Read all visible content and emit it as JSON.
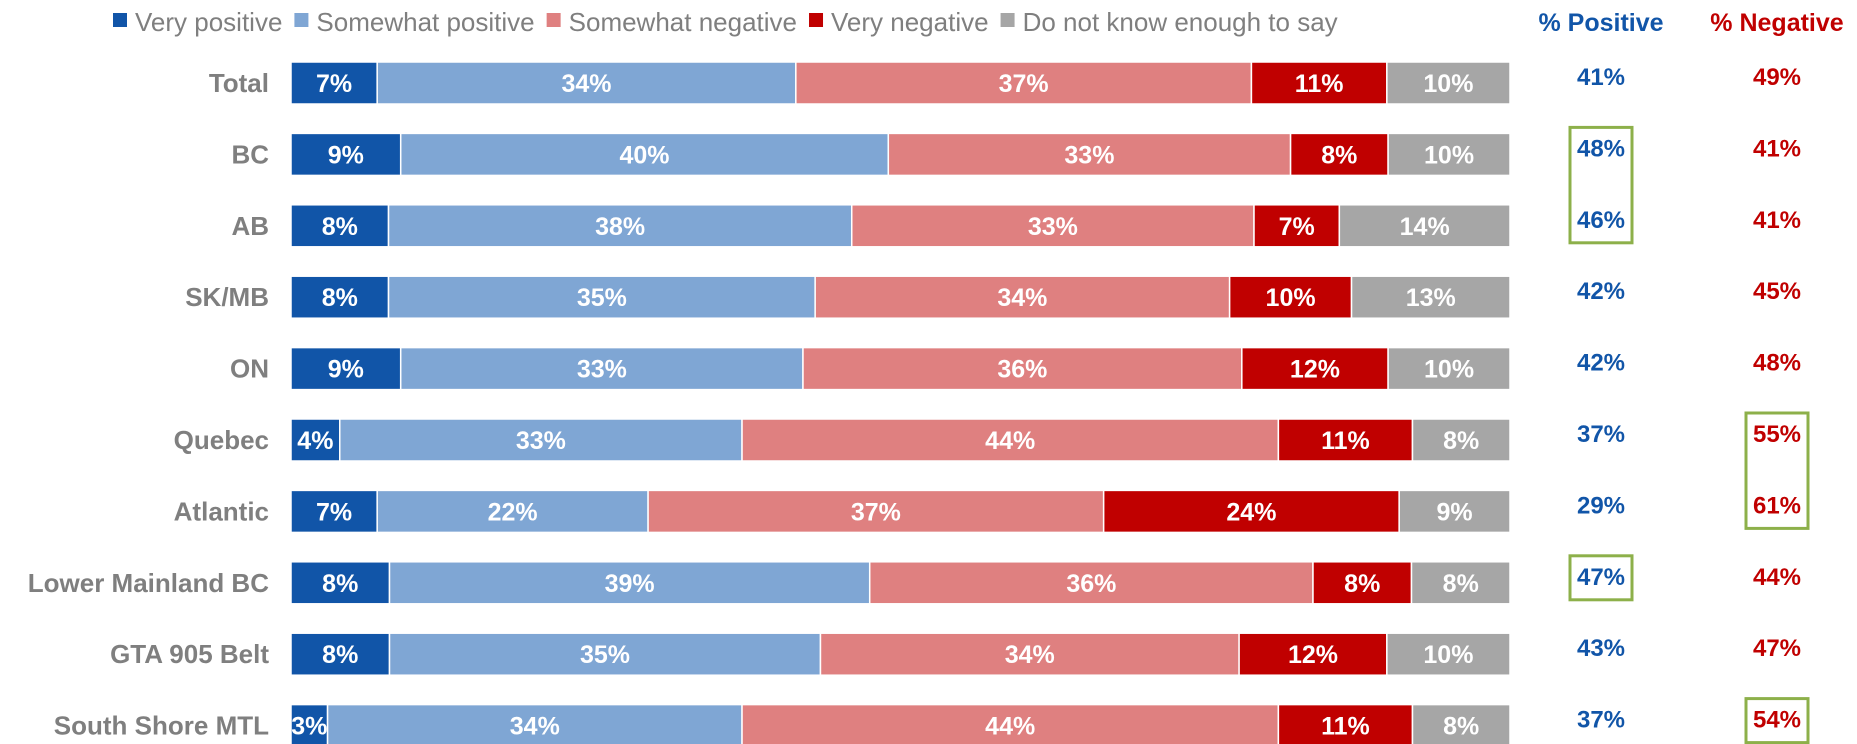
{
  "chart_data": {
    "type": "bar",
    "orientation": "horizontal",
    "stacked": true,
    "categories": [
      "Total",
      "BC",
      "AB",
      "SK/MB",
      "ON",
      "Quebec",
      "Atlantic",
      "Lower Mainland BC",
      "GTA 905 Belt",
      "South Shore MTL"
    ],
    "series": [
      {
        "name": "Very positive",
        "color": "#1155a8",
        "values": [
          7,
          9,
          8,
          8,
          9,
          4,
          7,
          8,
          8,
          3
        ]
      },
      {
        "name": "Somewhat positive",
        "color": "#7fa6d4",
        "values": [
          34,
          40,
          38,
          35,
          33,
          33,
          22,
          39,
          35,
          34
        ]
      },
      {
        "name": "Somewhat negative",
        "color": "#df8080",
        "values": [
          37,
          33,
          33,
          34,
          36,
          44,
          37,
          36,
          34,
          44
        ]
      },
      {
        "name": "Very negative",
        "color": "#c00000",
        "values": [
          11,
          8,
          7,
          10,
          12,
          11,
          24,
          8,
          12,
          11
        ]
      },
      {
        "name": "Do not know enough to say",
        "color": "#a6a6a6",
        "values": [
          10,
          10,
          14,
          13,
          10,
          8,
          9,
          8,
          10,
          8
        ]
      }
    ],
    "positive_header": "% Positive",
    "negative_header": "% Negative",
    "positive_totals": [
      41,
      48,
      46,
      42,
      42,
      37,
      29,
      47,
      43,
      37
    ],
    "negative_totals": [
      49,
      41,
      41,
      45,
      48,
      55,
      61,
      44,
      47,
      54
    ],
    "highlight_boxes": [
      {
        "column": "positive",
        "rows": [
          "BC",
          "AB"
        ]
      },
      {
        "column": "positive",
        "rows": [
          "Lower Mainland BC"
        ]
      },
      {
        "column": "negative",
        "rows": [
          "Quebec",
          "Atlantic"
        ]
      },
      {
        "column": "negative",
        "rows": [
          "South Shore MTL"
        ]
      }
    ],
    "value_suffix": "%",
    "legend_position": "top",
    "grid": false,
    "colors": {
      "label_gray": "#7f7f7f",
      "positive_text": "#1155a8",
      "negative_text": "#c00000",
      "highlight_box": "#8db04a"
    }
  }
}
